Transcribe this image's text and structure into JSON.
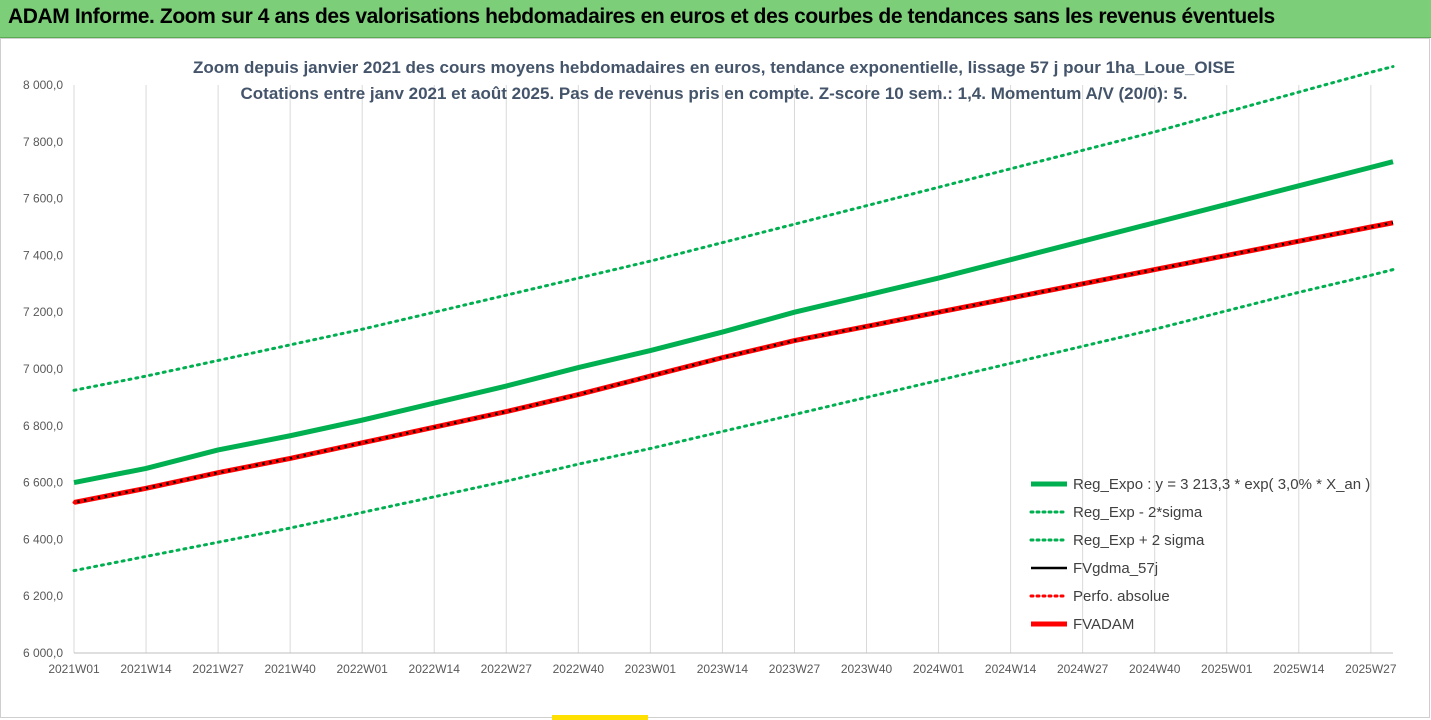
{
  "banner": {
    "title": "ADAM Informe. Zoom sur 4 ans des valorisations hebdomadaires en euros et des courbes de tendances sans les revenus éventuels"
  },
  "colors": {
    "banner_bg": "#7ccf78",
    "green": "#00b050",
    "red": "#ff0000",
    "black": "#000000",
    "grid": "#d9d9d9",
    "title_text": "#44546a"
  },
  "chart_data": {
    "type": "line",
    "title": "Zoom depuis janvier 2021 des cours moyens hebdomadaires en euros, tendance exponentielle, lissage 57 j pour 1ha_Loue_OISE",
    "subtitle": "Cotations entre janv 2021 et août 2025.  Pas de revenus pris en compte. Z-score 10 sem.: 1,4. Momentum A/V (20/0): 5.",
    "x_tick_labels": [
      "2021W01",
      "2021W14",
      "2021W27",
      "2021W40",
      "2022W01",
      "2022W14",
      "2022W27",
      "2022W40",
      "2023W01",
      "2023W14",
      "2023W27",
      "2023W40",
      "2024W01",
      "2024W14",
      "2024W27",
      "2024W40",
      "2025W01",
      "2025W14",
      "2025W27"
    ],
    "y_tick_labels": [
      "6 000,0",
      "6 200,0",
      "6 400,0",
      "6 600,0",
      "6 800,0",
      "7 000,0",
      "7 200,0",
      "7 400,0",
      "7 600,0",
      "7 800,0",
      "8 000,0"
    ],
    "ylim": [
      6000,
      8000
    ],
    "grid": "vertical",
    "legend_position": "bottom-right",
    "x_positions": [
      0,
      13,
      26,
      39,
      52,
      65,
      78,
      91,
      104,
      117,
      130,
      143,
      156,
      169,
      182,
      195,
      208,
      221,
      234,
      238
    ],
    "series": [
      {
        "name": "Reg_Expo : y = 3 213,3 * exp( 3,0% *  X_an )",
        "style": "solid-thick",
        "color": "#00b050",
        "values": [
          6600,
          6650,
          6715,
          6765,
          6820,
          6880,
          6940,
          7005,
          7065,
          7130,
          7200,
          7260,
          7320,
          7385,
          7450,
          7515,
          7580,
          7645,
          7710,
          7730
        ]
      },
      {
        "name": "Reg_Exp - 2*sigma",
        "style": "dotted",
        "color": "#00b050",
        "values": [
          6290,
          6340,
          6390,
          6440,
          6495,
          6550,
          6605,
          6665,
          6720,
          6780,
          6840,
          6900,
          6960,
          7020,
          7080,
          7140,
          7205,
          7270,
          7330,
          7350
        ]
      },
      {
        "name": "Reg_Exp + 2 sigma",
        "style": "dotted",
        "color": "#00b050",
        "values": [
          6925,
          6975,
          7030,
          7085,
          7140,
          7200,
          7260,
          7320,
          7380,
          7445,
          7510,
          7575,
          7640,
          7705,
          7770,
          7835,
          7905,
          7975,
          8045,
          8065
        ]
      },
      {
        "name": "FVgdma_57j",
        "style": "solid",
        "color": "#000000",
        "values": [
          6530,
          6580,
          6635,
          6685,
          6740,
          6795,
          6850,
          6910,
          6975,
          7040,
          7100,
          7150,
          7200,
          7250,
          7300,
          7350,
          7400,
          7450,
          7500,
          7515
        ]
      },
      {
        "name": "Perfo. absolue",
        "style": "dotted",
        "color": "#ff0000",
        "values": [
          6530,
          6580,
          6635,
          6685,
          6740,
          6795,
          6850,
          6910,
          6975,
          7040,
          7100,
          7150,
          7200,
          7250,
          7300,
          7350,
          7400,
          7450,
          7500,
          7515
        ]
      },
      {
        "name": "FVADAM",
        "style": "solid-thick",
        "color": "#ff0000",
        "values": [
          6530,
          6580,
          6635,
          6685,
          6740,
          6795,
          6850,
          6910,
          6975,
          7040,
          7100,
          7150,
          7200,
          7250,
          7300,
          7350,
          7400,
          7450,
          7500,
          7515
        ]
      }
    ]
  }
}
